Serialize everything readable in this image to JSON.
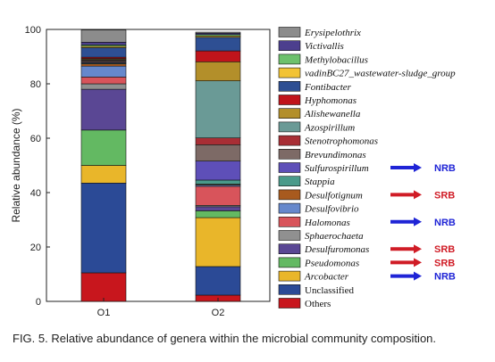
{
  "caption": "FIG. 5. Relative abundance of genera within the microbial community composition.",
  "chart_data": {
    "type": "bar",
    "stacked": true,
    "ylabel": "Relative abundance (%)",
    "ylim": [
      0,
      100
    ],
    "yticks": [
      0,
      20,
      40,
      60,
      80,
      100
    ],
    "categories": [
      "O1",
      "O2"
    ],
    "legend_position": "right",
    "series": [
      {
        "name": "Others",
        "color": "#c8161d",
        "italic": false,
        "values": [
          10.5,
          2.3
        ]
      },
      {
        "name": "Unclassified",
        "color": "#2b4a96",
        "italic": false,
        "values": [
          33.0,
          10.5
        ]
      },
      {
        "name": "Arcobacter",
        "color": "#e9b62a",
        "italic": true,
        "values": [
          6.5,
          18.0
        ]
      },
      {
        "name": "Pseudomonas",
        "color": "#63b962",
        "italic": true,
        "values": [
          13.0,
          2.5
        ]
      },
      {
        "name": "Desulfuromonas",
        "color": "#5a4794",
        "italic": true,
        "values": [
          15.0,
          1.5
        ]
      },
      {
        "name": "Sphaerochaeta",
        "color": "#909090",
        "italic": true,
        "values": [
          2.0,
          0.5
        ]
      },
      {
        "name": "Halomonas",
        "color": "#d8545b",
        "italic": true,
        "values": [
          2.5,
          7.0
        ]
      },
      {
        "name": "Desulfovibrio",
        "color": "#6688cc",
        "italic": true,
        "values": [
          4.0,
          0.5
        ]
      },
      {
        "name": "Desulfotignum",
        "color": "#a85a1e",
        "italic": true,
        "values": [
          0.8,
          0.3
        ]
      },
      {
        "name": "Stappia",
        "color": "#4a9a8a",
        "italic": true,
        "values": [
          0.3,
          1.5
        ]
      },
      {
        "name": "Sulfurospirillum",
        "color": "#5e4fb8",
        "italic": true,
        "values": [
          0.3,
          7.0
        ]
      },
      {
        "name": "Brevundimonas",
        "color": "#7d6a66",
        "italic": true,
        "values": [
          0.5,
          6.0
        ]
      },
      {
        "name": "Stenotrophomonas",
        "color": "#a82e35",
        "italic": true,
        "values": [
          0.3,
          2.5
        ]
      },
      {
        "name": "Azospirillum",
        "color": "#6a9a96",
        "italic": true,
        "values": [
          0.3,
          21.0
        ]
      },
      {
        "name": "Alishewanella",
        "color": "#b38f2a",
        "italic": true,
        "values": [
          0.3,
          7.0
        ]
      },
      {
        "name": "Hyphomonas",
        "color": "#c0141b",
        "italic": true,
        "values": [
          0.5,
          4.0
        ]
      },
      {
        "name": "Fontibacter",
        "color": "#2e4f93",
        "italic": true,
        "values": [
          3.5,
          5.0
        ]
      },
      {
        "name": "vadinBC27_wastewater-sludge_group",
        "color": "#f2c335",
        "italic": true,
        "values": [
          0.5,
          0.5
        ]
      },
      {
        "name": "Methylobacillus",
        "color": "#6dc16c",
        "italic": true,
        "values": [
          0.5,
          0.5
        ]
      },
      {
        "name": "Victivallis",
        "color": "#4c3f8e",
        "italic": true,
        "values": [
          1.0,
          0.5
        ]
      },
      {
        "name": "Erysipelothrix",
        "color": "#8c8c8c",
        "italic": true,
        "values": [
          4.5,
          0.4
        ]
      }
    ],
    "annotations": [
      {
        "label": "NRB",
        "series": "Sulfurospirillum",
        "color": "#1f24d6"
      },
      {
        "label": "SRB",
        "series": "Desulfotignum",
        "color": "#d01c26"
      },
      {
        "label": "NRB",
        "series": "Halomonas",
        "color": "#1f24d6"
      },
      {
        "label": "SRB",
        "series": "Desulfuromonas",
        "color": "#d01c26"
      },
      {
        "label": "SRB",
        "series": "Pseudomonas",
        "color": "#d01c26"
      },
      {
        "label": "NRB",
        "series": "Arcobacter",
        "color": "#1f24d6"
      }
    ]
  }
}
